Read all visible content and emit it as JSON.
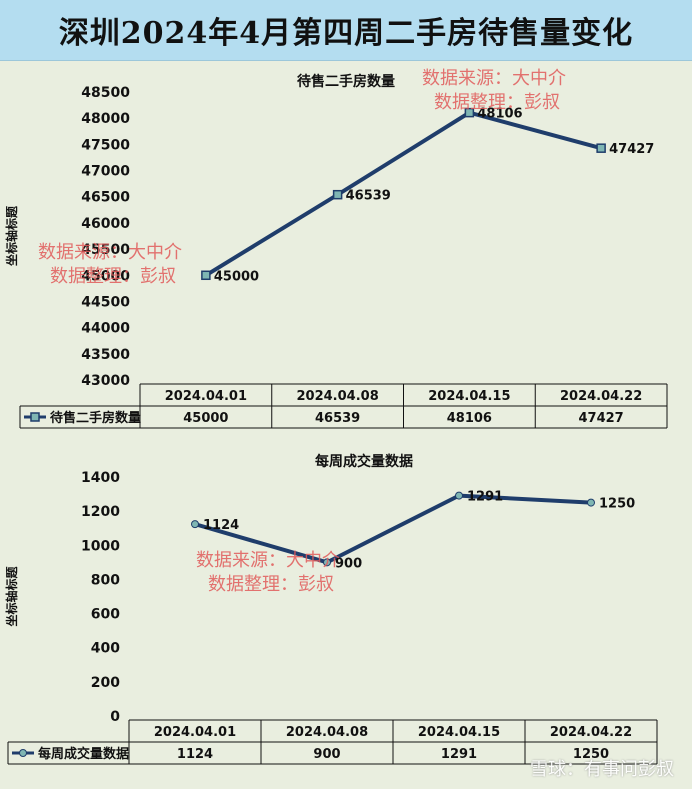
{
  "page_title": "深圳2024年4月第四周二手房待售量变化",
  "watermark_source": "数据来源：大中介",
  "watermark_author": "数据整理：彭叔",
  "footer_watermark": "雪球：有事问彭叔",
  "colors": {
    "line": "#1f3d6b",
    "marker_fill": "#7fb6b3",
    "header": "#b4ddf0",
    "watermark": "#e05a5a"
  },
  "chart_data": [
    {
      "type": "line",
      "title": "待售二手房数量",
      "ylabel": "坐标轴标题",
      "categories": [
        "2024.04.01",
        "2024.04.08",
        "2024.04.15",
        "2024.04.22"
      ],
      "series": [
        {
          "name": "待售二手房数量",
          "values": [
            45000,
            46539,
            48106,
            47427
          ]
        }
      ],
      "ylim": [
        43000,
        48500
      ],
      "yticks": [
        43000,
        43500,
        44000,
        44500,
        45000,
        45500,
        46000,
        46500,
        47000,
        47500,
        48000,
        48500
      ],
      "data_table": true,
      "marker": "square"
    },
    {
      "type": "line",
      "title": "每周成交量数据",
      "ylabel": "坐标轴标题",
      "categories": [
        "2024.04.01",
        "2024.04.08",
        "2024.04.15",
        "2024.04.22"
      ],
      "series": [
        {
          "name": "每周成交量数据",
          "values": [
            1124,
            900,
            1291,
            1250
          ]
        }
      ],
      "ylim": [
        0,
        1400
      ],
      "yticks": [
        0,
        200,
        400,
        600,
        800,
        1000,
        1200,
        1400
      ],
      "data_table": true,
      "marker": "circle"
    }
  ]
}
